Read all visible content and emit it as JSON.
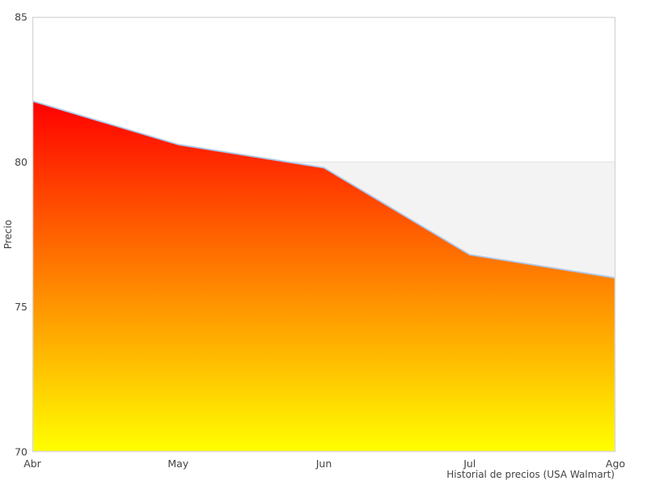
{
  "chart_data": {
    "type": "area",
    "categories": [
      "Abr",
      "May",
      "Jun",
      "Jul",
      "Ago"
    ],
    "values": [
      82.1,
      80.6,
      79.8,
      76.8,
      76.0
    ],
    "series_name": "Precio",
    "title": "",
    "xlabel": "Historial de precios (USA Walmart)",
    "ylabel": "Precio",
    "ylim": [
      70,
      85
    ],
    "yticks": [
      70,
      75,
      80,
      85
    ],
    "grid": "off",
    "legend": "none",
    "band": {
      "from": 70,
      "to": 80,
      "color": "#f3f3f3",
      "border_color": "#e2e2e2"
    },
    "colors": {
      "line": "#aec7e8",
      "gradient_top": "#ff0000",
      "gradient_mid": "#ff8000",
      "gradient_bottom": "#ffff00",
      "plot_border": "#d9d9d9",
      "text": "#434343",
      "background": "#ffffff"
    }
  }
}
